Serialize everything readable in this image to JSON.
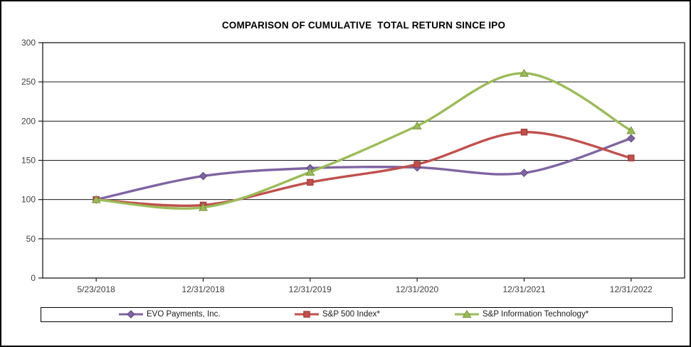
{
  "chart_data": {
    "type": "line",
    "title": "COMPARISON OF CUMULATIVE  TOTAL RETURN SINCE IPO",
    "categories": [
      "5/23/2018",
      "12/31/2018",
      "12/31/2019",
      "12/31/2020",
      "12/31/2021",
      "12/31/2022"
    ],
    "series": [
      {
        "name": "EVO Payments, Inc.",
        "color": "#8064A2",
        "edge": "#5F4B7E",
        "marker": "diamond",
        "values": [
          100,
          130,
          140,
          141,
          134,
          178
        ]
      },
      {
        "name": "S&P 500 Index*",
        "color": "#C0504D",
        "edge": "#953735",
        "marker": "square",
        "values": [
          100,
          93,
          122,
          145,
          186,
          153
        ]
      },
      {
        "name": "S&P Information Technology*",
        "color": "#9BBB59",
        "edge": "#77933C",
        "marker": "triangle",
        "values": [
          100,
          90,
          135,
          194,
          261,
          188
        ]
      }
    ],
    "xlabel": "",
    "ylabel": "",
    "ylim": [
      0,
      300
    ],
    "ytick_step": 50,
    "grid": "horizontal",
    "smoothed": true,
    "legend_position": "bottom-boxed",
    "axis_color": "#1a1a1a",
    "tick_label_color": "#404040",
    "plot_background": "#ffffff"
  }
}
